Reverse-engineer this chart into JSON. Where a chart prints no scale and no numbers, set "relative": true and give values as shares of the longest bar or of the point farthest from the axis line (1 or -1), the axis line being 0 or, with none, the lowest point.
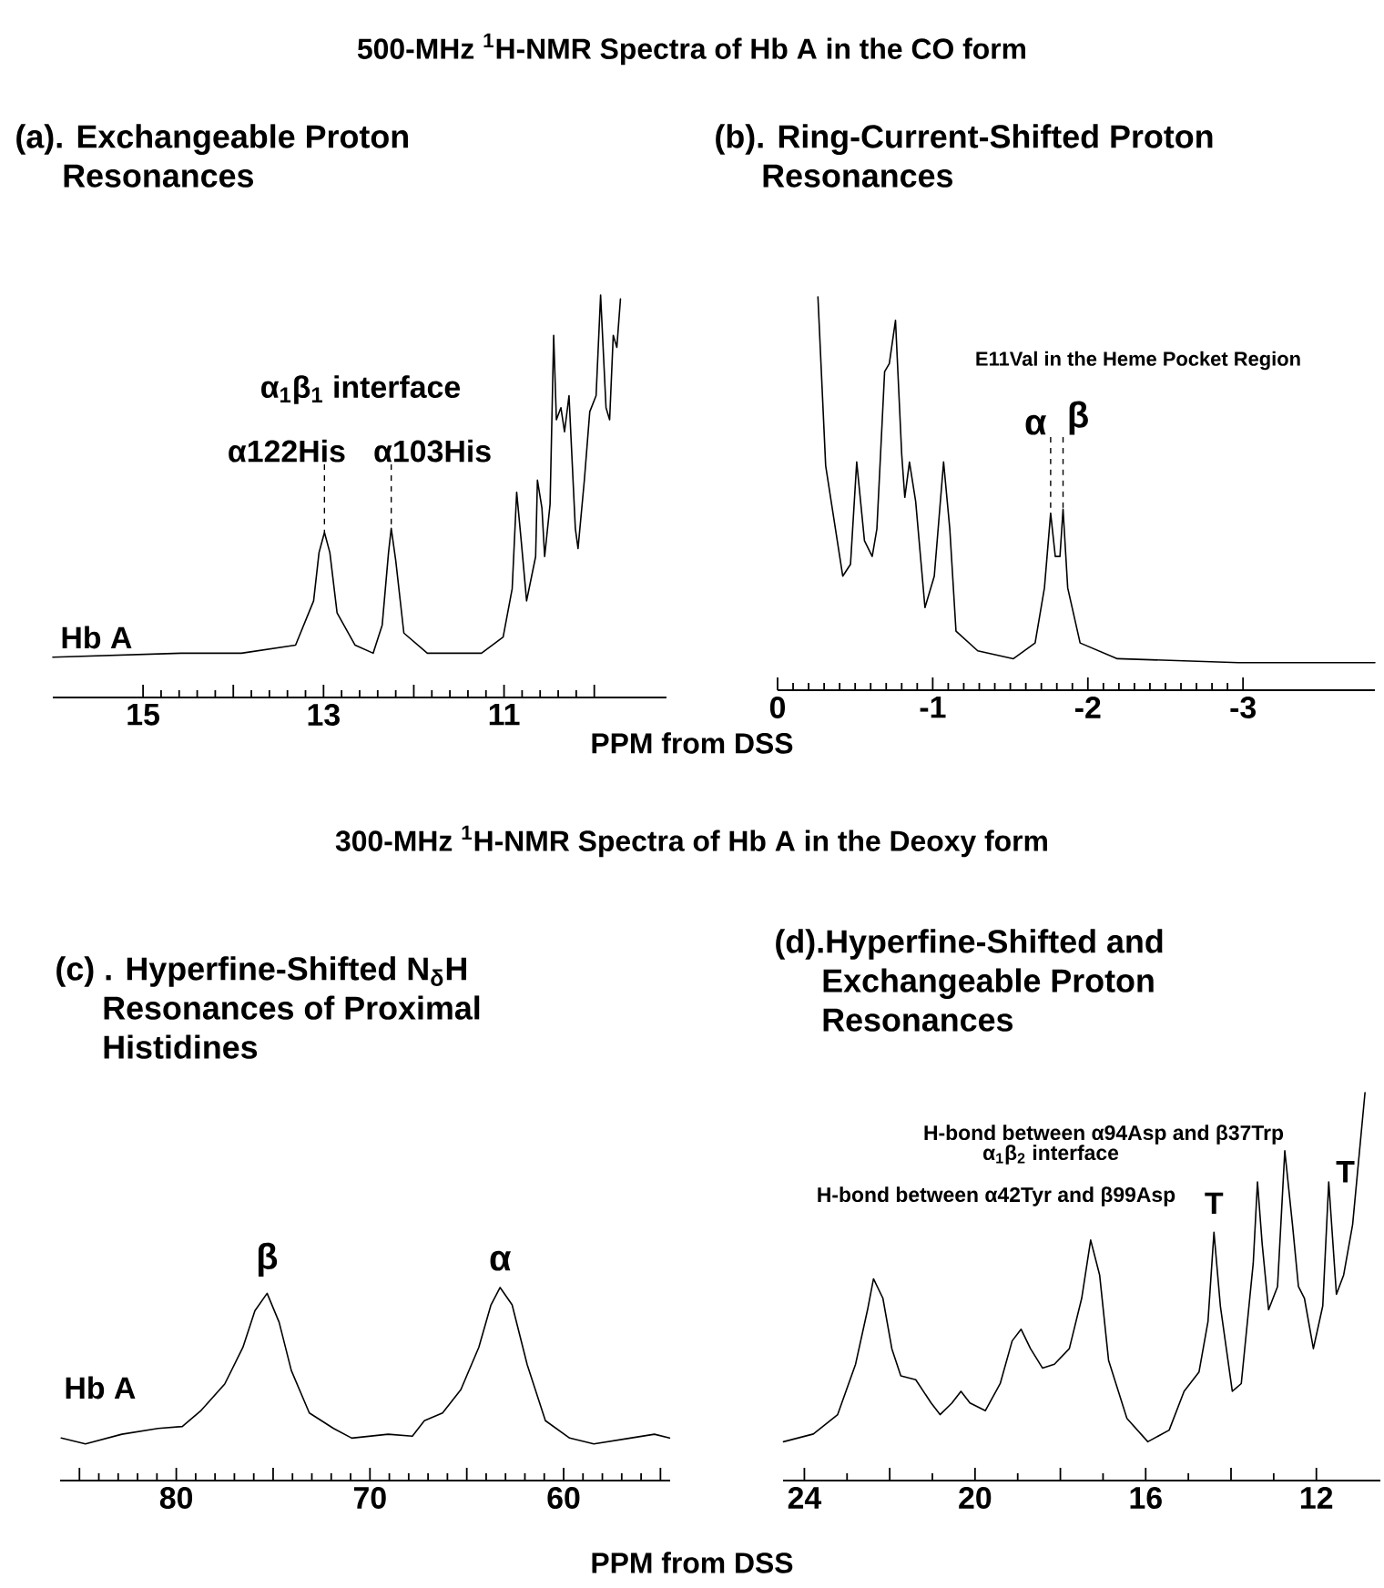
{
  "chart_data": [
    {
      "type": "line",
      "title": "(a). Exchangeable Proton Resonances",
      "xlabel": "PPM from DSS",
      "relative": true,
      "color": "#000000",
      "xlim": [
        16,
        9.2
      ],
      "xticks": [
        15,
        {
          "value": 14,
          "label": null
        },
        13,
        {
          "value": 12,
          "label": null
        },
        11,
        {
          "value": 10,
          "label": null
        }
      ],
      "x": [
        16.0,
        14.58,
        13.91,
        13.31,
        13.11,
        13.05,
        12.99,
        12.93,
        12.85,
        12.65,
        12.45,
        12.35,
        12.28,
        12.25,
        12.2,
        12.11,
        11.85,
        11.25,
        11.01,
        10.91,
        10.86,
        10.81,
        10.75,
        10.65,
        10.63,
        10.58,
        10.55,
        10.49,
        10.45,
        10.42,
        10.37,
        10.33,
        10.28,
        10.21,
        10.18,
        10.11,
        10.05,
        9.98,
        9.93,
        9.87,
        9.83,
        9.79,
        9.75,
        9.71
      ],
      "values": [
        0.1,
        0.11,
        0.11,
        0.13,
        0.24,
        0.36,
        0.41,
        0.36,
        0.21,
        0.13,
        0.11,
        0.18,
        0.36,
        0.42,
        0.34,
        0.16,
        0.11,
        0.11,
        0.15,
        0.27,
        0.51,
        0.39,
        0.24,
        0.35,
        0.54,
        0.47,
        0.35,
        0.48,
        0.9,
        0.69,
        0.72,
        0.66,
        0.75,
        0.42,
        0.37,
        0.54,
        0.71,
        0.75,
        1.0,
        0.72,
        0.69,
        0.9,
        0.87,
        0.99
      ],
      "annotations": [
        "500-MHz $^{1}$H-NMR Spectra of Hb A in the CO form",
        "α$_{1}$β$_{1}$ interface",
        {
          "text": "α122His",
          "x": 12.99,
          "y": 0.41
        },
        {
          "text": "α103His",
          "x": 12.25,
          "y": 0.42
        },
        "Hb A"
      ]
    },
    {
      "type": "line",
      "title": "(b). Ring-Current-Shifted Proton Resonances",
      "relative": true,
      "color": "#000000",
      "xlim": [
        0,
        -3.85
      ],
      "xticks": [
        0,
        -1,
        -2,
        -3
      ],
      "x": [
        -0.26,
        -0.31,
        -0.42,
        -0.47,
        -0.51,
        -0.56,
        -0.61,
        -0.64,
        -0.69,
        -0.72,
        -0.76,
        -0.8,
        -0.82,
        -0.85,
        -0.89,
        -0.95,
        -1.01,
        -1.07,
        -1.11,
        -1.15,
        -1.29,
        -1.52,
        -1.66,
        -1.72,
        -1.76,
        -1.79,
        -1.82,
        -1.84,
        -1.87,
        -1.95,
        -2.19,
        -2.97,
        -3.85
      ],
      "values": [
        1.0,
        0.57,
        0.29,
        0.32,
        0.58,
        0.38,
        0.34,
        0.41,
        0.81,
        0.83,
        0.94,
        0.6,
        0.49,
        0.58,
        0.48,
        0.21,
        0.29,
        0.58,
        0.41,
        0.15,
        0.1,
        0.08,
        0.12,
        0.26,
        0.45,
        0.34,
        0.34,
        0.46,
        0.26,
        0.12,
        0.08,
        0.07,
        0.07
      ],
      "annotations": [
        "E11Val in the Heme Pocket Region",
        {
          "text": "α",
          "x": -1.76,
          "y": 0.45
        },
        {
          "text": "β",
          "x": -1.84,
          "y": 0.46
        }
      ]
    },
    {
      "type": "line",
      "title": "(c) . Hyperfine-Shifted N$_{δ}$H Resonances of Proximal Histidines",
      "xlabel": "PPM from DSS",
      "relative": true,
      "color": "#000000",
      "xlim": [
        86,
        54.5
      ],
      "xticks": [
        {
          "value": 85,
          "label": null
        },
        80,
        {
          "value": 75,
          "label": null
        },
        70,
        {
          "value": 65,
          "label": null
        },
        60,
        {
          "value": 55,
          "label": null
        }
      ],
      "x": [
        85.94,
        84.69,
        82.81,
        80.94,
        79.69,
        78.75,
        77.5,
        76.56,
        75.94,
        75.31,
        74.69,
        74.06,
        73.13,
        71.88,
        70.94,
        69.06,
        67.81,
        67.19,
        66.25,
        65.31,
        64.38,
        63.75,
        63.28,
        62.66,
        61.88,
        60.94,
        59.69,
        58.44,
        56.56,
        55.31,
        54.53
      ],
      "values": [
        0.22,
        0.19,
        0.24,
        0.27,
        0.28,
        0.36,
        0.5,
        0.69,
        0.88,
        0.97,
        0.82,
        0.57,
        0.35,
        0.27,
        0.22,
        0.24,
        0.23,
        0.31,
        0.35,
        0.47,
        0.69,
        0.91,
        1.0,
        0.91,
        0.6,
        0.31,
        0.22,
        0.19,
        0.22,
        0.24,
        0.22
      ],
      "annotations": [
        "300-MHz $^{1}$H-NMR Spectra of Hb A in the Deoxy form",
        {
          "text": "β",
          "x": 75.31,
          "y": 0.97
        },
        {
          "text": "α",
          "x": 63.28,
          "y": 1.0
        },
        "Hb A"
      ]
    },
    {
      "type": "line",
      "title": "(d).Hyperfine-Shifted and Exchangeable Proton Resonances",
      "relative": true,
      "color": "#000000",
      "xlim": [
        24.5,
        10.5
      ],
      "xticks": [
        24,
        {
          "value": 22,
          "label": null
        },
        20,
        {
          "value": 18,
          "label": null
        },
        16,
        {
          "value": 14,
          "label": null
        },
        12
      ],
      "x": [
        24.49,
        23.79,
        23.22,
        22.8,
        22.52,
        22.38,
        22.16,
        21.95,
        21.74,
        21.39,
        21.03,
        20.82,
        20.54,
        20.33,
        20.12,
        19.76,
        19.41,
        19.13,
        18.92,
        18.7,
        18.42,
        18.14,
        17.79,
        17.5,
        17.29,
        17.08,
        16.87,
        16.44,
        15.95,
        15.45,
        15.1,
        14.75,
        14.54,
        14.4,
        14.25,
        13.97,
        13.76,
        13.48,
        13.38,
        13.27,
        13.12,
        12.91,
        12.74,
        12.56,
        12.42,
        12.28,
        12.07,
        11.85,
        11.71,
        11.53,
        11.36,
        11.15,
        10.86
      ],
      "values": [
        0.1,
        0.12,
        0.17,
        0.3,
        0.44,
        0.52,
        0.47,
        0.34,
        0.27,
        0.26,
        0.2,
        0.17,
        0.2,
        0.23,
        0.2,
        0.18,
        0.25,
        0.36,
        0.39,
        0.34,
        0.29,
        0.3,
        0.34,
        0.47,
        0.62,
        0.53,
        0.31,
        0.16,
        0.1,
        0.13,
        0.23,
        0.28,
        0.41,
        0.64,
        0.45,
        0.23,
        0.25,
        0.56,
        0.77,
        0.61,
        0.44,
        0.5,
        0.85,
        0.66,
        0.5,
        0.47,
        0.34,
        0.45,
        0.77,
        0.48,
        0.53,
        0.66,
        1.0
      ],
      "annotations": [
        "H-bond between α94Asp and β37Trp",
        "α$_{1}$β$_{2}$ interface",
        "H-bond between α42Tyr and β99Asp",
        {
          "text": "T",
          "x": 14.4,
          "y": 0.64
        },
        {
          "text": "T",
          "x": 11.15,
          "y": 0.66
        }
      ]
    }
  ]
}
